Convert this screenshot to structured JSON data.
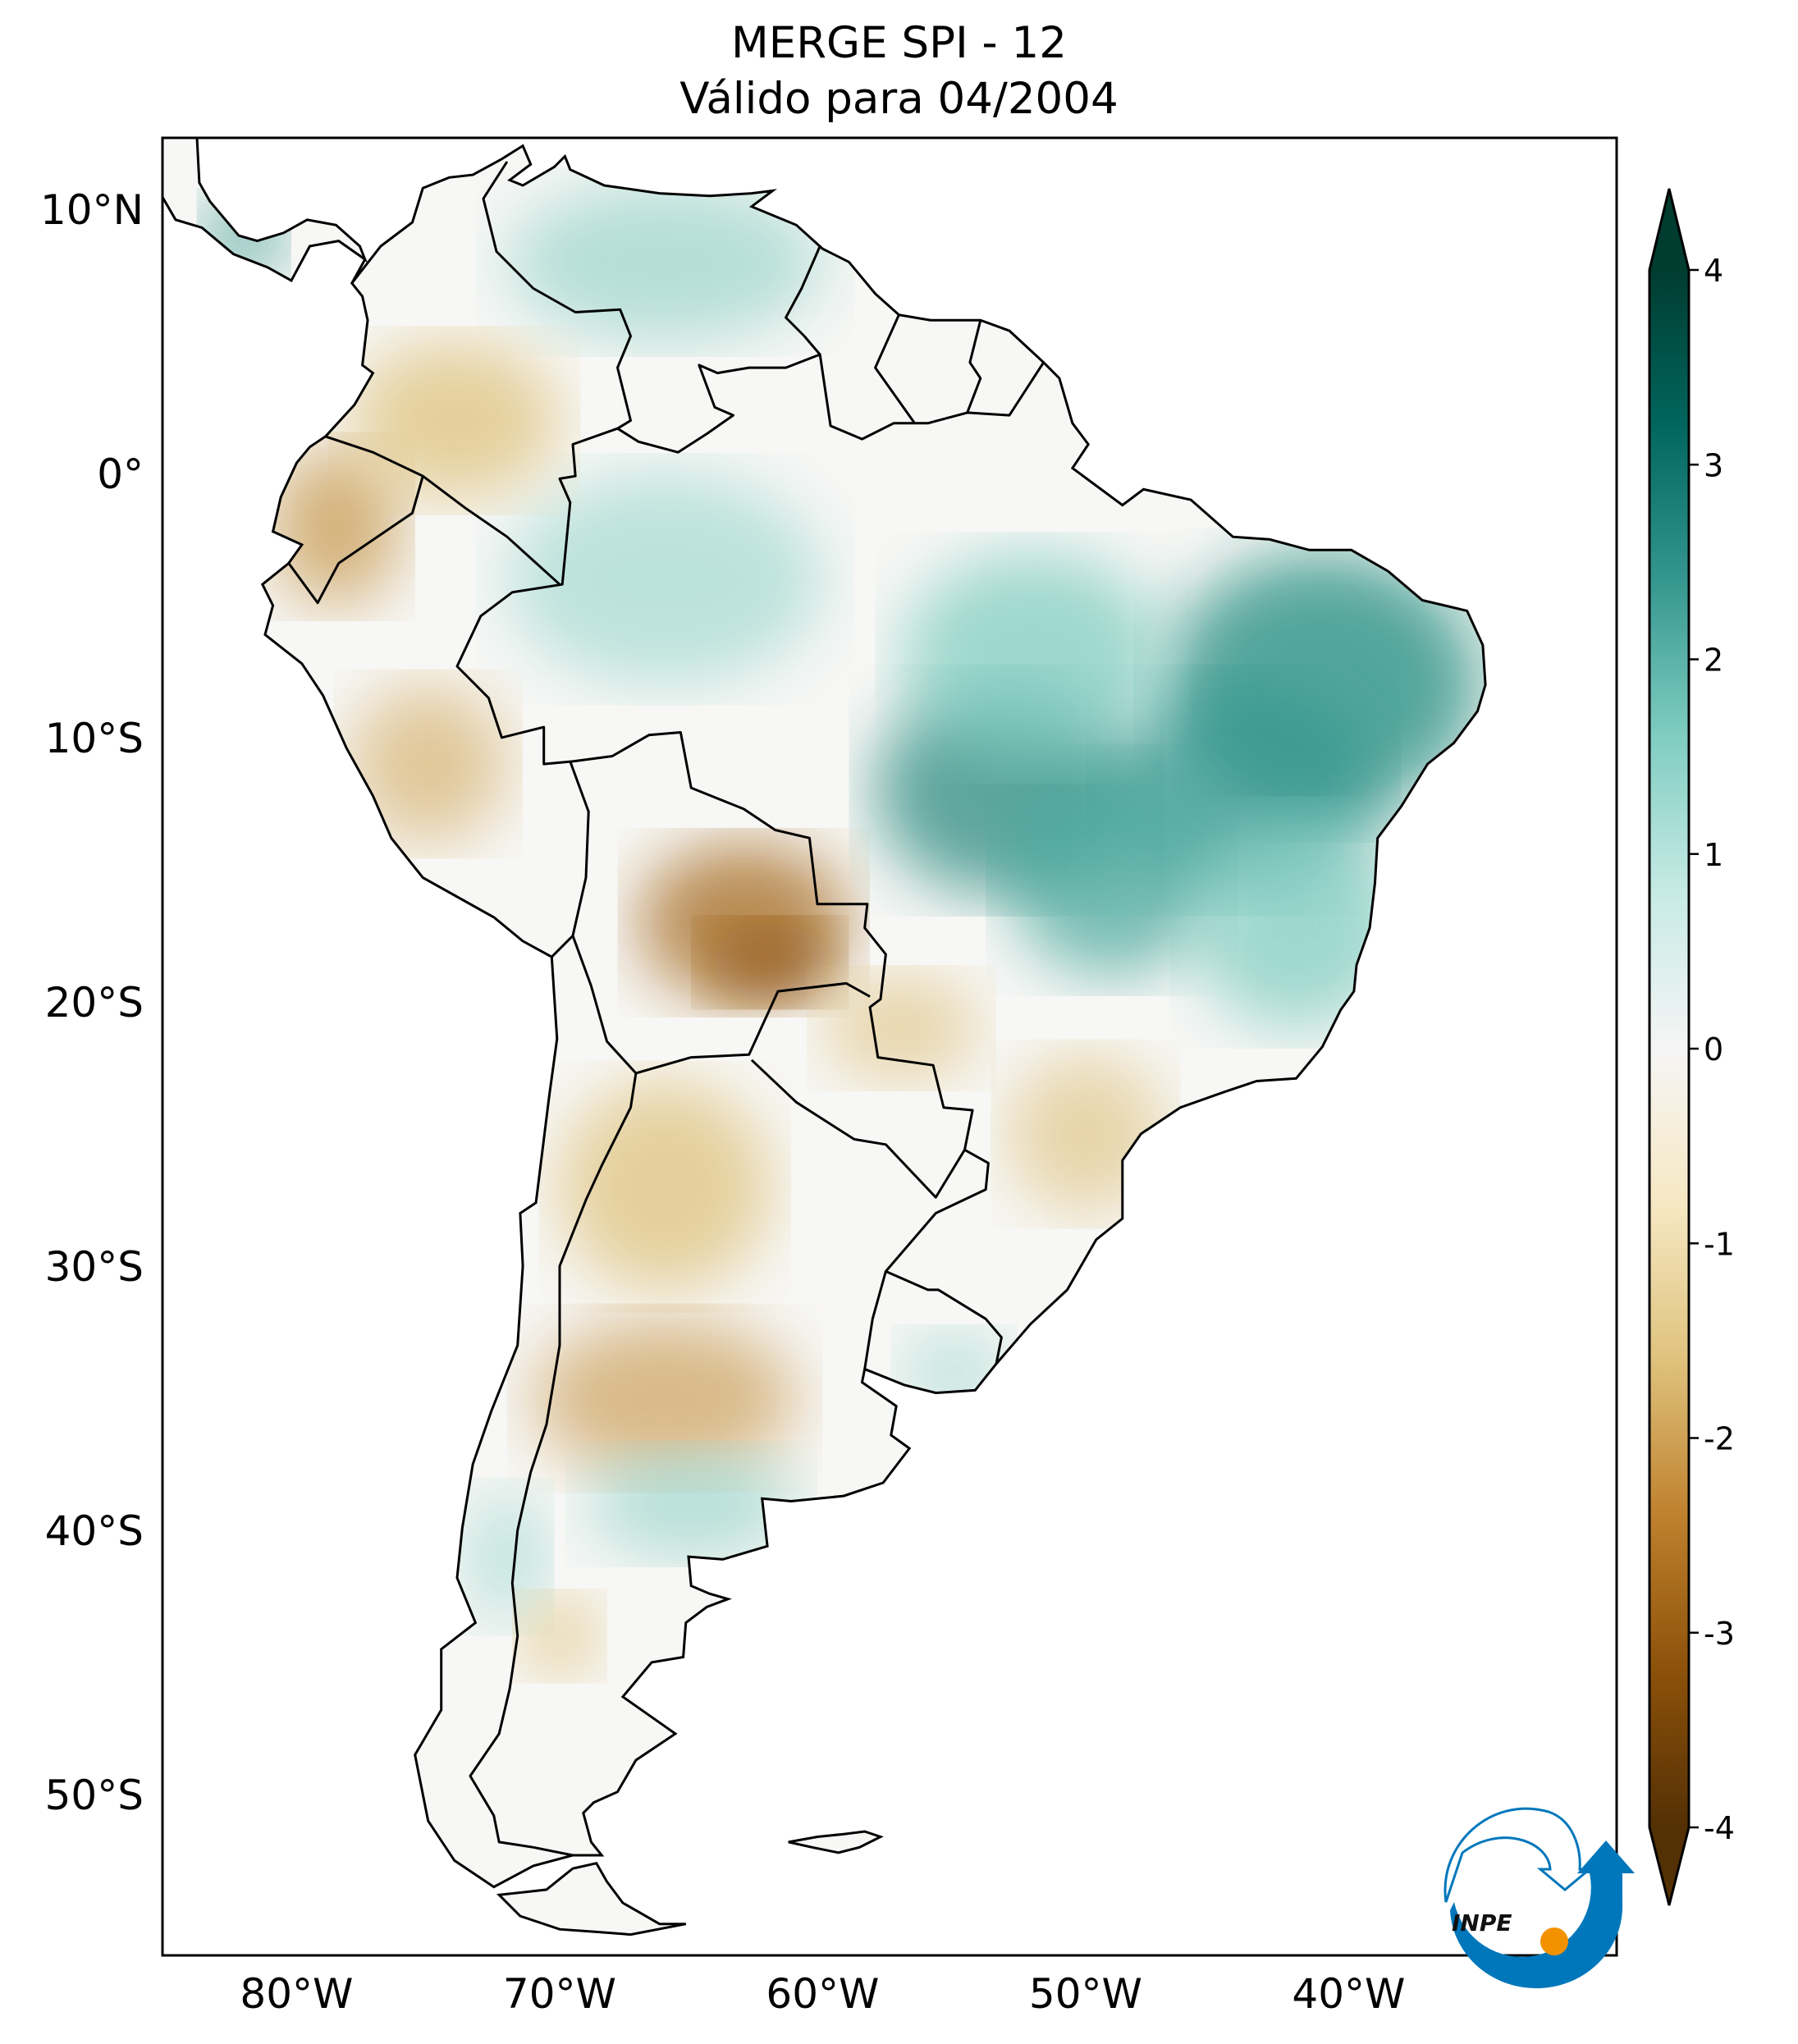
{
  "title": {
    "line1": "MERGE   SPI - 12",
    "line2": "Válido para 04/2004"
  },
  "chart_data": {
    "type": "heatmap",
    "title": "MERGE   SPI - 12",
    "subtitle": "Válido para 04/2004",
    "region": "South America",
    "lon_range": [
      -85,
      -30
    ],
    "lat_range": [
      -56,
      12.7
    ],
    "lon_ticks": [
      {
        "value": -80,
        "label": "80°W"
      },
      {
        "value": -70,
        "label": "70°W"
      },
      {
        "value": -60,
        "label": "60°W"
      },
      {
        "value": -50,
        "label": "50°W"
      },
      {
        "value": -40,
        "label": "40°W"
      }
    ],
    "lat_ticks": [
      {
        "value": 10,
        "label": "10°N"
      },
      {
        "value": 0,
        "label": "0°"
      },
      {
        "value": -10,
        "label": "10°S"
      },
      {
        "value": -20,
        "label": "20°S"
      },
      {
        "value": -30,
        "label": "30°S"
      },
      {
        "value": -40,
        "label": "40°S"
      },
      {
        "value": -50,
        "label": "50°S"
      }
    ],
    "colorbar": {
      "range": [
        -4,
        4
      ],
      "extend": "both",
      "colormap": "BrBG",
      "ticks": [
        {
          "value": 4,
          "label": "4"
        },
        {
          "value": 3,
          "label": "3"
        },
        {
          "value": 2,
          "label": "2"
        },
        {
          "value": 1,
          "label": "1"
        },
        {
          "value": 0,
          "label": "0"
        },
        {
          "value": -1,
          "label": "-1"
        },
        {
          "value": -2,
          "label": "-2"
        },
        {
          "value": -3,
          "label": "-3"
        },
        {
          "value": -4,
          "label": "-4"
        }
      ],
      "colors": [
        "#543005",
        "#8c510a",
        "#bf812d",
        "#dfc27d",
        "#f6e8c3",
        "#f5f5f5",
        "#c7eae5",
        "#80cdc1",
        "#35978f",
        "#01665e",
        "#003c30"
      ]
    },
    "anomalies": [
      {
        "area": "Northeast Brazil",
        "spi": 2.5
      },
      {
        "area": "Central Brazil",
        "spi": 2.8
      },
      {
        "area": "Bolivia / Mato Grosso do Sul",
        "spi": -2.5
      },
      {
        "area": "Ecuador / Colombia",
        "spi": -1.5
      },
      {
        "area": "Central Argentina",
        "spi": -1.7
      },
      {
        "area": "Northern Patagonia",
        "spi": 1.3
      },
      {
        "area": "Southern Brazil",
        "spi": -1.2
      },
      {
        "area": "Venezuela",
        "spi": 1.0
      }
    ]
  },
  "logo": {
    "text": "INPE",
    "blue": "#0077bb",
    "orange": "#f39200"
  }
}
